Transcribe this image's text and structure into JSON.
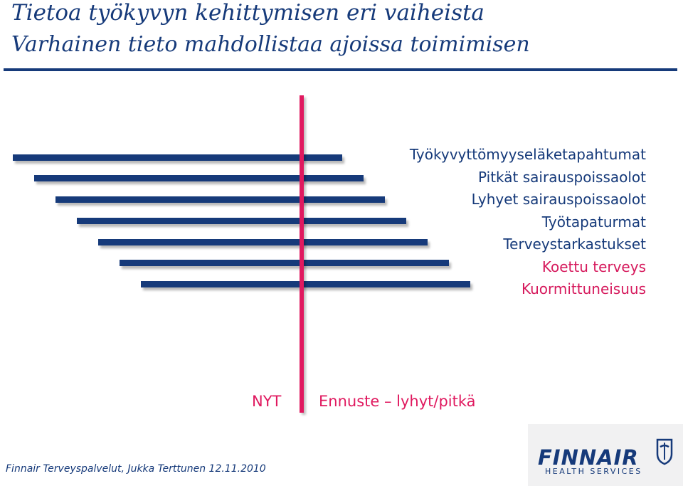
{
  "header": {
    "title_line1": "Tietoa työkyvyn kehittymisen eri vaiheista",
    "title_line2": "Varhainen tieto mahdollistaa ajoissa toimimisen"
  },
  "diagram": {
    "factors": [
      {
        "label": "Työkyvyttömyyseläketapahtumat",
        "color": "#163a7a"
      },
      {
        "label": "Pitkät sairauspoissaolot",
        "color": "#163a7a"
      },
      {
        "label": "Lyhyet sairauspoissaolot",
        "color": "#163a7a"
      },
      {
        "label": "Työtapaturmat",
        "color": "#163a7a"
      },
      {
        "label": "Terveystarkastukset",
        "color": "#163a7a"
      },
      {
        "label": "Koettu terveys",
        "color": "#d6195c"
      },
      {
        "label": "Kuormittuneisuus",
        "color": "#d6195c"
      }
    ],
    "label_now": "NYT",
    "label_forecast": "Ennuste – lyhyt/pitkä",
    "colors": {
      "navy": "#163a7a",
      "pink": "#e0195f"
    }
  },
  "footer": {
    "text": "Finnair Terveyspalvelut, Jukka Terttunen 12.11.2010"
  },
  "logo": {
    "name": "FINNAIR",
    "subtitle": "HEALTH SERVICES"
  }
}
